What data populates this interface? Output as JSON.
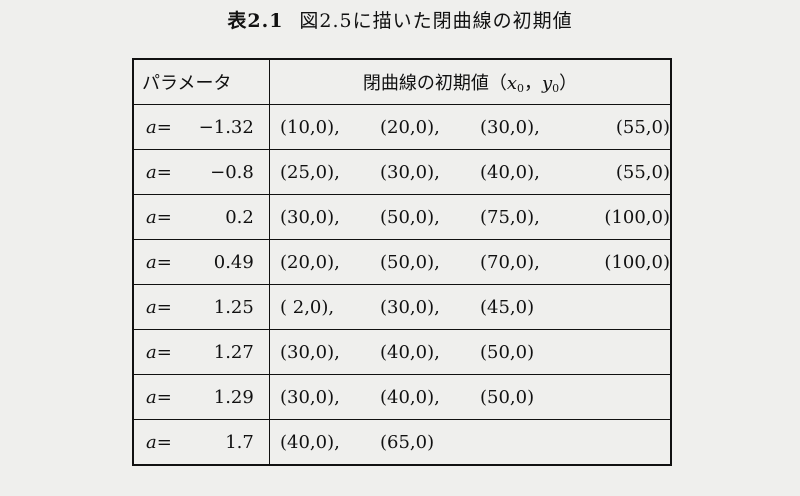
{
  "caption": {
    "number": "表2.1",
    "title": "図2.5に描いた閉曲線の初期値"
  },
  "table": {
    "header": {
      "param": "パラメータ",
      "values_prefix": "閉曲線の初期値（",
      "x": "x",
      "x_sub": "0",
      "sep": "，",
      "y": "y",
      "y_sub": "0",
      "values_suffix": "）"
    },
    "rows": [
      {
        "a_symbol": "a",
        "a_eq": "=",
        "a_value": "−1.32",
        "values": [
          "(10,0),",
          "(20,0),",
          "(30,0),",
          "(55,0)"
        ]
      },
      {
        "a_symbol": "a",
        "a_eq": "=",
        "a_value": "−0.8",
        "values": [
          "(25,0),",
          "(30,0),",
          "(40,0),",
          "(55,0)"
        ]
      },
      {
        "a_symbol": "a",
        "a_eq": "=",
        "a_value": "0.2",
        "values": [
          "(30,0),",
          "(50,0),",
          "(75,0),",
          "(100,0)"
        ]
      },
      {
        "a_symbol": "a",
        "a_eq": "=",
        "a_value": "0.49",
        "values": [
          "(20,0),",
          "(50,0),",
          "(70,0),",
          "(100,0)"
        ]
      },
      {
        "a_symbol": "a",
        "a_eq": "=",
        "a_value": "1.25",
        "values": [
          "( 2,0),",
          "(30,0),",
          "(45,0)"
        ]
      },
      {
        "a_symbol": "a",
        "a_eq": "=",
        "a_value": "1.27",
        "values": [
          "(30,0),",
          "(40,0),",
          "(50,0)"
        ]
      },
      {
        "a_symbol": "a",
        "a_eq": "=",
        "a_value": "1.29",
        "values": [
          "(30,0),",
          "(40,0),",
          "(50,0)"
        ]
      },
      {
        "a_symbol": "a",
        "a_eq": "=",
        "a_value": "1.7",
        "values": [
          "(40,0),",
          "(65,0)"
        ]
      }
    ]
  }
}
